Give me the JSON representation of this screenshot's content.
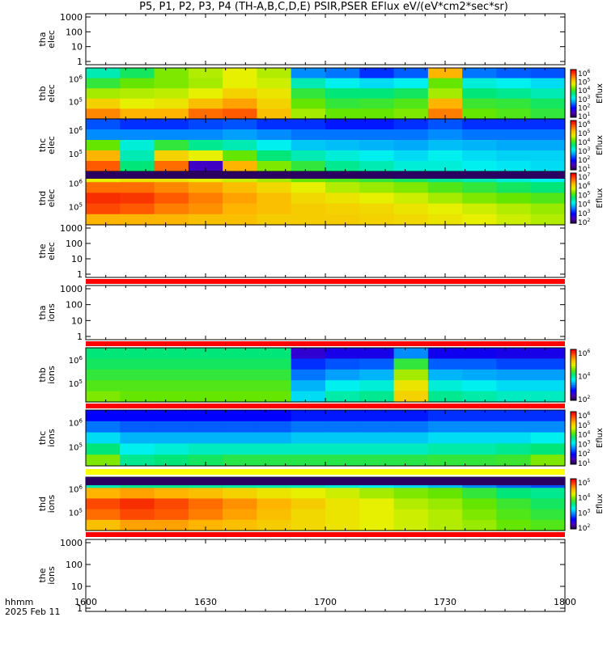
{
  "title": "P5, P1, P2, P3, P4 (TH-A,B,C,D,E) PSIR,PSER EFlux eV/(eV*cm2*sec*sr)",
  "footer": {
    "line1": "hhmm",
    "line2": "2025 Feb 11"
  },
  "x_ticks": [
    "1600",
    "1630",
    "1700",
    "1730",
    "1800"
  ],
  "colors": {
    "background": "#ffffff",
    "axis": "#000000",
    "fill_band": "#ff0000"
  },
  "chart_data": {
    "type": "heatmap",
    "title": "P5, P1, P2, P3, P4 (TH-A,B,C,D,E) PSIR,PSER EFlux eV/(eV*cm2*sec*sr)",
    "xlabel": "hhmm",
    "xlim": [
      "1600",
      "1800"
    ],
    "date": "2025 Feb 11",
    "panels": [
      {
        "id": "tha-elec",
        "label": [
          "tha",
          "elec"
        ],
        "has_data": false,
        "yticks": [
          "1000",
          "100",
          "10",
          "1"
        ]
      },
      {
        "id": "thb-elec",
        "label": [
          "thb",
          "elec"
        ],
        "has_data": true,
        "yticks": [
          "10^6",
          "10^5"
        ],
        "colorbar": {
          "title": "Eflux",
          "ticks": [
            "10^6",
            "10^5",
            "10^4",
            "10^3",
            "10^2",
            "10^1"
          ]
        }
      },
      {
        "id": "thc-elec",
        "label": [
          "thc",
          "elec"
        ],
        "has_data": true,
        "yticks": [
          "10^6",
          "10^5"
        ],
        "colorbar": {
          "title": "Eflux",
          "ticks": [
            "10^6",
            "10^5",
            "10^4",
            "10^3",
            "10^2",
            "10^1"
          ]
        }
      },
      {
        "id": "thd-elec",
        "label": [
          "thd",
          "elec"
        ],
        "has_data": true,
        "yticks": [
          "10^6",
          "10^5"
        ],
        "colorbar": {
          "title": "Eflux",
          "ticks": [
            "10^7",
            "10^6",
            "10^5",
            "10^4",
            "10^3",
            "10^2"
          ]
        }
      },
      {
        "id": "the-elec",
        "label": [
          "the",
          "elec"
        ],
        "has_data": false,
        "yticks": [
          "1000",
          "100",
          "10",
          "1"
        ]
      },
      {
        "id": "tha-ions",
        "label": [
          "tha",
          "ions"
        ],
        "has_data": false,
        "yticks": [
          "1000",
          "100",
          "10",
          "1"
        ]
      },
      {
        "id": "thb-ions",
        "label": [
          "thb",
          "ions"
        ],
        "has_data": true,
        "yticks": [
          "10^6",
          "10^5"
        ],
        "colorbar": {
          "title": "",
          "ticks": [
            "10^6",
            "10^4",
            "10^2"
          ]
        }
      },
      {
        "id": "thc-ions",
        "label": [
          "thc",
          "ions"
        ],
        "has_data": true,
        "yticks": [
          "10^6",
          "10^5"
        ],
        "colorbar": {
          "title": "Eflux",
          "ticks": [
            "10^6",
            "10^5",
            "10^4",
            "10^3",
            "10^2",
            "10^1"
          ]
        }
      },
      {
        "id": "thd-ions",
        "label": [
          "thd",
          "ions"
        ],
        "has_data": true,
        "yticks": [
          "10^6",
          "10^5"
        ],
        "colorbar": {
          "title": "Eflux",
          "ticks": [
            "10^5",
            "10^4",
            "10^3",
            "10^2"
          ]
        }
      },
      {
        "id": "the-ions",
        "label": [
          "the",
          "ions"
        ],
        "has_data": false,
        "yticks": [
          "1000",
          "100",
          "10",
          "1"
        ]
      }
    ],
    "heatmaps": {
      "thb-elec": [
        [
          0.45,
          0.52,
          0.62,
          0.66,
          0.7,
          0.66,
          0.3,
          0.28,
          0.22,
          0.26,
          0.8,
          0.28,
          0.26,
          0.25
        ],
        [
          0.55,
          0.6,
          0.62,
          0.65,
          0.7,
          0.68,
          0.45,
          0.4,
          0.38,
          0.4,
          0.6,
          0.42,
          0.4,
          0.38
        ],
        [
          0.65,
          0.66,
          0.67,
          0.7,
          0.75,
          0.72,
          0.55,
          0.5,
          0.5,
          0.52,
          0.65,
          0.5,
          0.48,
          0.45
        ],
        [
          0.75,
          0.7,
          0.72,
          0.78,
          0.82,
          0.75,
          0.6,
          0.55,
          0.56,
          0.58,
          0.8,
          0.56,
          0.55,
          0.52
        ],
        [
          0.85,
          0.8,
          0.8,
          0.88,
          0.9,
          0.78,
          0.65,
          0.6,
          0.6,
          0.62,
          0.86,
          0.6,
          0.58,
          0.55
        ]
      ],
      "thc-elec": [
        [
          0.25,
          0.22,
          0.22,
          0.24,
          0.25,
          0.22,
          0.22,
          0.2,
          0.2,
          0.22,
          0.25,
          0.22,
          0.22,
          0.22
        ],
        [
          0.3,
          0.3,
          0.3,
          0.3,
          0.32,
          0.3,
          0.28,
          0.28,
          0.28,
          0.28,
          0.3,
          0.28,
          0.28,
          0.28
        ],
        [
          0.6,
          0.42,
          0.55,
          0.48,
          0.45,
          0.4,
          0.36,
          0.35,
          0.34,
          0.33,
          0.35,
          0.34,
          0.33,
          0.33
        ],
        [
          0.8,
          0.45,
          0.75,
          0.7,
          0.6,
          0.5,
          0.45,
          0.42,
          0.4,
          0.38,
          0.4,
          0.38,
          0.37,
          0.37
        ],
        [
          0.9,
          0.5,
          0.88,
          0.1,
          0.8,
          0.62,
          0.55,
          0.48,
          0.45,
          0.42,
          0.42,
          0.4,
          0.39,
          0.38
        ]
      ],
      "thd-elec": [
        [
          0.7,
          0.72,
          0.72,
          0.7,
          0.68,
          0.65,
          0.6,
          0.58,
          0.55,
          0.52,
          0.48,
          0.45,
          0.42,
          0.4
        ],
        [
          0.88,
          0.88,
          0.85,
          0.82,
          0.78,
          0.74,
          0.7,
          0.66,
          0.64,
          0.62,
          0.58,
          0.55,
          0.52,
          0.5
        ],
        [
          0.95,
          0.94,
          0.9,
          0.86,
          0.82,
          0.78,
          0.74,
          0.72,
          0.7,
          0.68,
          0.65,
          0.62,
          0.6,
          0.58
        ],
        [
          0.92,
          0.9,
          0.86,
          0.84,
          0.8,
          0.78,
          0.76,
          0.75,
          0.74,
          0.72,
          0.7,
          0.68,
          0.66,
          0.64
        ],
        [
          0.8,
          0.8,
          0.8,
          0.78,
          0.78,
          0.76,
          0.76,
          0.76,
          0.75,
          0.74,
          0.72,
          0.7,
          0.68,
          0.66
        ]
      ],
      "thb-ions": [
        [
          0.5,
          0.5,
          0.5,
          0.5,
          0.5,
          0.5,
          0.12,
          0.15,
          0.15,
          0.3,
          0.16,
          0.16,
          0.15,
          0.15
        ],
        [
          0.52,
          0.52,
          0.52,
          0.52,
          0.52,
          0.52,
          0.22,
          0.25,
          0.26,
          0.55,
          0.26,
          0.26,
          0.24,
          0.24
        ],
        [
          0.55,
          0.55,
          0.55,
          0.55,
          0.55,
          0.55,
          0.28,
          0.32,
          0.34,
          0.65,
          0.34,
          0.33,
          0.32,
          0.32
        ],
        [
          0.58,
          0.58,
          0.58,
          0.58,
          0.58,
          0.58,
          0.34,
          0.4,
          0.42,
          0.72,
          0.42,
          0.4,
          0.38,
          0.38
        ],
        [
          0.62,
          0.6,
          0.6,
          0.6,
          0.6,
          0.6,
          0.38,
          0.46,
          0.48,
          0.75,
          0.48,
          0.46,
          0.44,
          0.44
        ]
      ],
      "thc-ions": [
        [
          0.18,
          0.18,
          0.18,
          0.18,
          0.18,
          0.18,
          0.2,
          0.2,
          0.2,
          0.2,
          0.22,
          0.22,
          0.22,
          0.22
        ],
        [
          0.28,
          0.26,
          0.26,
          0.26,
          0.26,
          0.26,
          0.28,
          0.28,
          0.28,
          0.28,
          0.3,
          0.3,
          0.3,
          0.3
        ],
        [
          0.38,
          0.34,
          0.34,
          0.34,
          0.34,
          0.34,
          0.36,
          0.36,
          0.36,
          0.36,
          0.38,
          0.38,
          0.38,
          0.4
        ],
        [
          0.5,
          0.4,
          0.42,
          0.44,
          0.44,
          0.44,
          0.44,
          0.44,
          0.44,
          0.44,
          0.46,
          0.46,
          0.48,
          0.5
        ],
        [
          0.62,
          0.48,
          0.5,
          0.52,
          0.54,
          0.54,
          0.54,
          0.54,
          0.54,
          0.54,
          0.55,
          0.55,
          0.56,
          0.62
        ]
      ],
      "thd-ions": [
        [
          0.45,
          0.48,
          0.48,
          0.47,
          0.46,
          0.45,
          0.44,
          0.42,
          0.4,
          0.38,
          0.35,
          0.3,
          0.27,
          0.25
        ],
        [
          0.8,
          0.82,
          0.8,
          0.78,
          0.75,
          0.72,
          0.7,
          0.68,
          0.65,
          0.62,
          0.6,
          0.55,
          0.5,
          0.48
        ],
        [
          0.92,
          0.95,
          0.92,
          0.88,
          0.84,
          0.8,
          0.76,
          0.72,
          0.7,
          0.66,
          0.64,
          0.6,
          0.56,
          0.52
        ],
        [
          0.88,
          0.92,
          0.9,
          0.86,
          0.82,
          0.78,
          0.74,
          0.72,
          0.7,
          0.68,
          0.66,
          0.62,
          0.58,
          0.55
        ],
        [
          0.78,
          0.82,
          0.82,
          0.8,
          0.78,
          0.76,
          0.74,
          0.72,
          0.7,
          0.68,
          0.66,
          0.64,
          0.6,
          0.58
        ]
      ]
    }
  }
}
